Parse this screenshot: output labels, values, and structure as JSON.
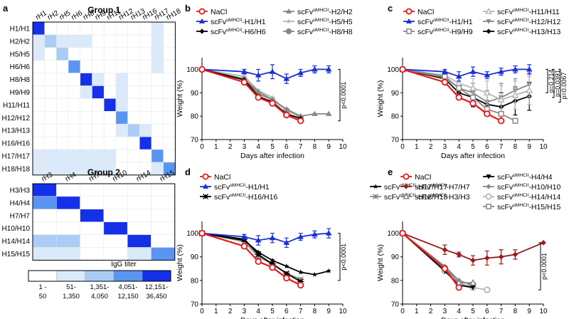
{
  "colors": {
    "scale": [
      "#ffffff",
      "#dbeafb",
      "#aacdf5",
      "#5b95f2",
      "#1430e8"
    ],
    "nacl": "#e8191b",
    "h1": "#1a2fd6",
    "grey": "#888888",
    "lightgrey": "#b7b7b7",
    "black": "#000000",
    "darkred": "#9a1a1a"
  },
  "panel_a": {
    "letter": "a",
    "group1": {
      "title": "Group 1",
      "cols": [
        "rH1",
        "rH2",
        "rH5",
        "rH6",
        "rH8",
        "rH9",
        "rH11",
        "rH12",
        "rH13",
        "rH16",
        "rH17",
        "rH18"
      ],
      "rows": [
        "H1/H1",
        "H2/H2",
        "H5/H5",
        "H6/H6",
        "H8/H8",
        "H9/H9",
        "H11/H11",
        "H12/H12",
        "H13/H13",
        "H16/H16",
        "H17/H17",
        "H18/H18"
      ],
      "levels": [
        [
          4,
          0,
          0,
          0,
          0,
          0,
          0,
          0,
          0,
          0,
          1,
          0
        ],
        [
          1,
          2,
          1,
          1,
          1,
          0,
          0,
          0,
          0,
          0,
          1,
          0
        ],
        [
          1,
          0,
          2,
          0,
          0,
          0,
          0,
          0,
          0,
          0,
          1,
          0
        ],
        [
          0,
          0,
          0,
          3,
          0,
          0,
          0,
          0,
          0,
          0,
          1,
          0
        ],
        [
          0,
          0,
          0,
          0,
          4,
          1,
          0,
          1,
          0,
          0,
          0,
          0
        ],
        [
          0,
          0,
          0,
          0,
          1,
          4,
          0,
          1,
          0,
          0,
          0,
          0
        ],
        [
          0,
          0,
          0,
          0,
          0,
          0,
          4,
          1,
          0,
          0,
          0,
          0
        ],
        [
          0,
          0,
          0,
          0,
          0,
          0,
          0,
          3,
          0,
          0,
          0,
          0
        ],
        [
          0,
          0,
          0,
          0,
          0,
          0,
          0,
          1,
          2,
          1,
          0,
          0
        ],
        [
          0,
          0,
          0,
          0,
          0,
          0,
          0,
          0,
          0,
          4,
          0,
          0
        ],
        [
          1,
          1,
          1,
          1,
          1,
          1,
          1,
          0,
          0,
          0,
          3,
          0
        ],
        [
          1,
          1,
          1,
          1,
          1,
          1,
          1,
          0,
          0,
          0,
          1,
          3
        ]
      ]
    },
    "group2": {
      "title": "Group 2",
      "cols": [
        "rH3",
        "rH4",
        "rH7",
        "rH10",
        "rH14",
        "rH15"
      ],
      "rows": [
        "H3/H3",
        "H4/H4",
        "H7/H7",
        "H10/H10",
        "H14/H14",
        "H15/H15"
      ],
      "levels": [
        [
          4,
          0,
          0,
          0,
          0,
          0
        ],
        [
          3,
          4,
          0,
          0,
          0,
          0
        ],
        [
          0,
          0,
          4,
          0,
          0,
          0
        ],
        [
          0,
          0,
          0,
          4,
          0,
          0
        ],
        [
          2,
          2,
          0,
          0,
          4,
          0
        ],
        [
          1,
          1,
          0,
          0,
          1,
          3
        ]
      ]
    },
    "legend": {
      "title": "IgG titer",
      "ranges": [
        "1 -\n50",
        "51-\n1,350",
        "1,351-\n4,050",
        "4,051-\n12,150",
        "12,151-\n36,450"
      ]
    }
  },
  "chart_data": [
    {
      "panel": "b",
      "type": "line",
      "xlabel": "Days after infection",
      "ylabel": "Weight (%)",
      "xlim": [
        0,
        10
      ],
      "ylim": [
        70,
        105
      ],
      "xticks": [
        0,
        1,
        2,
        3,
        4,
        5,
        6,
        7,
        8,
        9,
        10
      ],
      "yticks": [
        70,
        80,
        90,
        100
      ],
      "annotations": [
        {
          "text": "p<0.0001",
          "y_range": [
            78,
            100
          ]
        }
      ],
      "series": [
        {
          "name": "NaCl",
          "display": "NaCl",
          "marker": "circle-open",
          "color": "nacl",
          "x": [
            0,
            3,
            4,
            5,
            6,
            7
          ],
          "y": [
            100,
            94.5,
            88,
            85.5,
            80.5,
            78
          ]
        },
        {
          "name": "scFv αMHCII-H1/H1",
          "display": "scFv",
          "sup": "αMHCII",
          "suffix": "-H1/H1",
          "marker": "triangle",
          "color": "h1",
          "x": [
            0,
            3,
            4,
            5,
            6,
            7,
            8,
            9
          ],
          "y": [
            100,
            99,
            97.5,
            99,
            96,
            98.5,
            100,
            100
          ],
          "err": [
            0,
            1,
            2.5,
            3,
            2,
            1.5,
            1.5,
            1.5
          ]
        },
        {
          "name": "scFv αMHCII-H6/H6",
          "display": "scFv",
          "sup": "αMHCII",
          "suffix": "-H6/H6",
          "marker": "diamond",
          "color": "black",
          "x": [
            0,
            3,
            4,
            5,
            6,
            7
          ],
          "y": [
            100,
            95.5,
            88.5,
            86,
            81,
            79
          ]
        },
        {
          "name": "scFv αMHCII-H2/H2",
          "display": "scFv",
          "sup": "αMHCII",
          "suffix": "-H2/H2",
          "marker": "triangle",
          "color": "grey",
          "x": [
            0,
            3,
            4,
            5,
            6,
            7,
            8,
            9
          ],
          "y": [
            100,
            96,
            90.5,
            87,
            83,
            80,
            81,
            81
          ]
        },
        {
          "name": "scFv αMHCII-H5/H5",
          "display": "scFv",
          "sup": "αMHCII",
          "suffix": "-H5/H5",
          "marker": "star",
          "color": "lightgrey",
          "x": [
            0,
            3,
            4,
            5,
            6,
            7
          ],
          "y": [
            100,
            97,
            91,
            88,
            82,
            80
          ]
        },
        {
          "name": "scFv αMHCII-H8/H8",
          "display": "scFv",
          "sup": "αMHCII",
          "suffix": "-H8/H8",
          "marker": "circle",
          "color": "grey",
          "x": [
            0,
            3,
            4,
            5,
            6,
            7
          ],
          "y": [
            100,
            96,
            89.5,
            87,
            82.5,
            79.5
          ]
        }
      ]
    },
    {
      "panel": "c",
      "type": "line",
      "xlabel": "Days after infection",
      "ylabel": "Weight (%)",
      "xlim": [
        0,
        10
      ],
      "ylim": [
        70,
        105
      ],
      "xticks": [
        0,
        1,
        2,
        3,
        4,
        5,
        6,
        7,
        8,
        9,
        10
      ],
      "yticks": [
        70,
        80,
        90,
        100
      ],
      "annotations": [
        {
          "text": "p=0.214",
          "y_range": [
            90,
            100
          ]
        },
        {
          "text": "p=0.0391",
          "y_range": [
            88,
            100
          ]
        },
        {
          "text": "p=0.0067",
          "y_range": [
            86,
            100
          ]
        }
      ],
      "series": [
        {
          "name": "NaCl",
          "display": "NaCl",
          "marker": "circle-open",
          "color": "nacl",
          "x": [
            0,
            3,
            4,
            5,
            6,
            7
          ],
          "y": [
            100,
            94.5,
            88,
            85.5,
            81,
            78
          ]
        },
        {
          "name": "scFv αMHCII-H1/H1",
          "display": "scFv",
          "sup": "αMHCII",
          "suffix": "-H1/H1",
          "marker": "triangle",
          "color": "h1",
          "x": [
            0,
            3,
            4,
            5,
            6,
            7,
            8,
            9
          ],
          "y": [
            100,
            99,
            97,
            99,
            97.5,
            99,
            100,
            100
          ],
          "err": [
            0,
            1,
            2,
            2,
            1.5,
            1.5,
            1.5,
            2
          ]
        },
        {
          "name": "scFv αMHCII-H9/H9",
          "display": "scFv",
          "sup": "αMHCII",
          "suffix": "-H9/H9",
          "marker": "square-open",
          "color": "grey",
          "x": [
            0,
            3,
            4,
            5,
            6,
            7,
            8
          ],
          "y": [
            100,
            97,
            92,
            88,
            83,
            81,
            78
          ]
        },
        {
          "name": "scFv αMHCII-H11/H11",
          "display": "scFv",
          "sup": "αMHCII",
          "suffix": "-H11/H11",
          "marker": "triangle-open",
          "color": "lightgrey",
          "x": [
            0,
            3,
            4,
            5,
            6,
            7,
            8,
            9
          ],
          "y": [
            100,
            97.5,
            94,
            92,
            90,
            87,
            89,
            91
          ],
          "err": [
            0,
            2,
            3,
            4,
            5,
            6,
            6,
            6
          ]
        },
        {
          "name": "scFv αMHCII-H12/H12",
          "display": "scFv",
          "sup": "αMHCII",
          "suffix": "-H12/H12",
          "marker": "triangle-down",
          "color": "grey",
          "x": [
            0,
            3,
            4,
            5,
            6,
            7,
            8,
            9
          ],
          "y": [
            100,
            96.5,
            92,
            90,
            86,
            88,
            91,
            93.5
          ],
          "err": [
            0,
            2,
            3,
            4,
            5,
            6,
            5,
            5
          ]
        },
        {
          "name": "scFv αMHCII-H13/H13",
          "display": "scFv",
          "sup": "αMHCII",
          "suffix": "-H13/H13",
          "marker": "diamond",
          "color": "black",
          "x": [
            0,
            3,
            4,
            5,
            6,
            7,
            8,
            9
          ],
          "y": [
            100,
            96,
            90,
            88,
            85,
            84,
            86.5,
            88.5
          ],
          "err": [
            0,
            2,
            3,
            4,
            5,
            6,
            6,
            6
          ]
        }
      ]
    },
    {
      "panel": "d",
      "type": "line",
      "xlabel": "Days after infection",
      "ylabel": "Weight (%)",
      "xlim": [
        0,
        10
      ],
      "ylim": [
        70,
        105
      ],
      "xticks": [
        0,
        1,
        2,
        3,
        4,
        5,
        6,
        7,
        8,
        9,
        10
      ],
      "yticks": [
        70,
        80,
        90,
        100
      ],
      "annotations": [
        {
          "text": "p<0.0001",
          "y_range": [
            80,
            100
          ]
        }
      ],
      "series": [
        {
          "name": "NaCl",
          "display": "NaCl",
          "marker": "circle-open",
          "color": "nacl",
          "x": [
            0,
            3,
            4,
            5,
            6,
            7
          ],
          "y": [
            100,
            94.5,
            88,
            85.5,
            81,
            78
          ]
        },
        {
          "name": "scFv αMHCII-H1/H1",
          "display": "scFv",
          "sup": "αMHCII",
          "suffix": "-H1/H1",
          "marker": "triangle",
          "color": "h1",
          "x": [
            0,
            3,
            4,
            5,
            6,
            7,
            8,
            9
          ],
          "y": [
            100,
            98.5,
            97,
            98,
            96,
            98.5,
            99.5,
            100
          ],
          "err": [
            0,
            1,
            2,
            2,
            2,
            1.5,
            1.5,
            2
          ]
        },
        {
          "name": "scFv αMHCII-H16/H16",
          "display": "scFv",
          "sup": "αMHCII",
          "suffix": "-H16/H16",
          "marker": "bug",
          "color": "black",
          "x": [
            0,
            3,
            4,
            5,
            6,
            7
          ],
          "y": [
            100,
            97.5,
            91,
            87,
            83,
            79.5
          ]
        },
        {
          "name": "scFv αMHCII-H17/H17",
          "display": "scFv",
          "sup": "αMHCII",
          "suffix": "-H17/H17",
          "marker": "star",
          "color": "black",
          "x": [
            0,
            3,
            4,
            5,
            6,
            7,
            8,
            9
          ],
          "y": [
            100,
            97,
            92,
            88.5,
            86,
            83.5,
            82.5,
            84
          ]
        },
        {
          "name": "scFv αMHCII-H18/H18",
          "display": "scFv",
          "sup": "αMHCII",
          "suffix": "-H18/H18",
          "marker": "bug",
          "color": "grey",
          "x": [
            0,
            3,
            4,
            5,
            6,
            7
          ],
          "y": [
            100,
            96.5,
            90,
            87,
            83,
            80.5
          ]
        }
      ]
    },
    {
      "panel": "e",
      "type": "line",
      "xlabel": "Days after infection",
      "ylabel": "Weight (%)",
      "xlim": [
        0,
        10
      ],
      "ylim": [
        70,
        105
      ],
      "xticks": [
        0,
        1,
        2,
        3,
        4,
        5,
        6,
        7,
        8,
        9,
        10
      ],
      "yticks": [
        70,
        80,
        90,
        100
      ],
      "annotations": [
        {
          "text": "p<0.0001",
          "y_range": [
            76,
            96
          ]
        }
      ],
      "series": [
        {
          "name": "NaCl",
          "display": "NaCl",
          "marker": "circle-open",
          "color": "nacl",
          "x": [
            0,
            3,
            4
          ],
          "y": [
            100,
            85,
            77
          ]
        },
        {
          "name": "scFv αMHCII-H7/H7",
          "display": "scFv",
          "sup": "αMHCII",
          "suffix": "-H7/H7",
          "marker": "diamond",
          "color": "darkred",
          "x": [
            0,
            3,
            4,
            5,
            6,
            7,
            8,
            10
          ],
          "y": [
            100,
            93,
            91,
            88.5,
            89.5,
            90,
            91,
            96
          ],
          "err": [
            0,
            2,
            1,
            2,
            3,
            3,
            2,
            0
          ]
        },
        {
          "name": "scFv αMHCII-H3/H3",
          "display": "scFv",
          "sup": "αMHCII",
          "suffix": "-H3/H3",
          "marker": "triangle-open",
          "color": "grey",
          "x": [
            0,
            3,
            4,
            5
          ],
          "y": [
            100,
            85.5,
            79,
            79
          ]
        },
        {
          "name": "scFv αMHCII-H4/H4",
          "display": "scFv",
          "sup": "αMHCII",
          "suffix": "-H4/H4",
          "marker": "triangle-down",
          "color": "black",
          "x": [
            0,
            3,
            4,
            5
          ],
          "y": [
            100,
            84,
            78,
            77
          ]
        },
        {
          "name": "scFv αMHCII-H10/H10",
          "display": "scFv",
          "sup": "αMHCII",
          "suffix": "-H10/H10",
          "marker": "diamond",
          "color": "grey",
          "x": [
            0,
            3,
            4,
            5
          ],
          "y": [
            100,
            86,
            80,
            78
          ]
        },
        {
          "name": "scFv αMHCII-H14/H14",
          "display": "scFv",
          "sup": "αMHCII",
          "suffix": "-H14/H14",
          "marker": "circle-open",
          "color": "lightgrey",
          "x": [
            0,
            3,
            4,
            5,
            6
          ],
          "y": [
            100,
            84,
            79,
            77,
            76
          ]
        },
        {
          "name": "scFv αMHCII-H15/H15",
          "display": "scFv",
          "sup": "αMHCII",
          "suffix": "-H15/H15",
          "marker": "square-open",
          "color": "grey",
          "x": [
            0,
            3,
            4,
            5
          ],
          "y": [
            100,
            85,
            78,
            78
          ]
        }
      ]
    }
  ]
}
